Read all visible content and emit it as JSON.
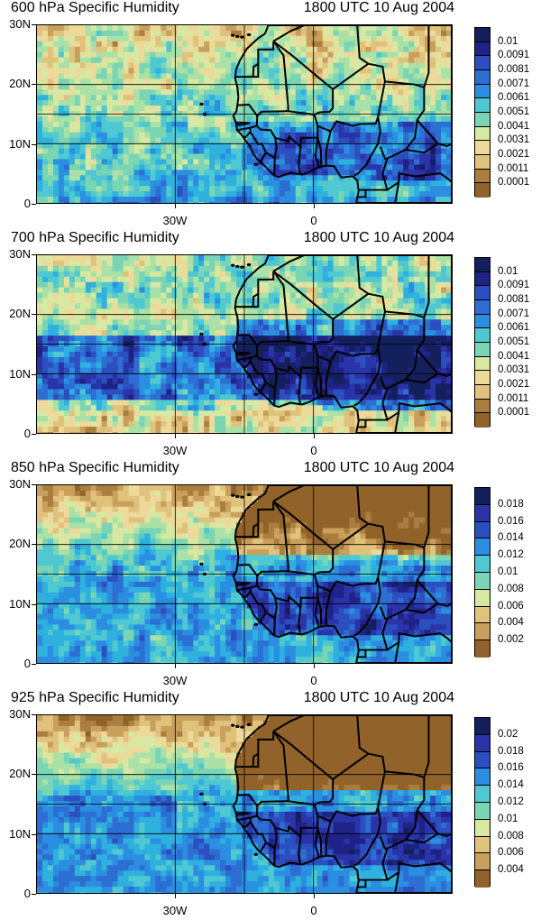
{
  "colors": {
    "humidity_scale": [
      "#91632a",
      "#a97e3f",
      "#c8a05c",
      "#e0c27c",
      "#edd99a",
      "#d8e8a2",
      "#a9e1a6",
      "#7ad5b5",
      "#4fc8d2",
      "#2fb1df",
      "#2b8ee0",
      "#2c6ed2",
      "#2c4fbf",
      "#2a34a8",
      "#1f2287",
      "#14205e"
    ],
    "land_outline": "#000000",
    "gridline": "#000000"
  },
  "panels": [
    {
      "title": "600 hPa Specific Humidity",
      "time": "1800 UTC 10 Aug 2004",
      "lat_labels": [
        "30N",
        "20N",
        "10N",
        "0"
      ],
      "lon_labels": [
        "30W",
        "0"
      ],
      "legend_labels": [
        "0.01",
        "0.0091",
        "0.0081",
        "0.0071",
        "0.0061",
        "0.0051",
        "0.0041",
        "0.0031",
        "0.0021",
        "0.0011",
        "0.0001"
      ],
      "legend_fill": 0.52
    },
    {
      "title": "700 hPa Specific Humidity",
      "time": "1800 UTC 10 Aug 2004",
      "lat_labels": [
        "30N",
        "20N",
        "10N",
        "0"
      ],
      "lon_labels": [
        "30W",
        "0"
      ],
      "legend_labels": [
        "0.01",
        "0.0091",
        "0.0081",
        "0.0071",
        "0.0061",
        "0.0051",
        "0.0041",
        "0.0031",
        "0.0021",
        "0.0011",
        "0.0001"
      ],
      "legend_fill": 0.62
    },
    {
      "title": "850 hPa Specific Humidity",
      "time": "1800 UTC 10 Aug 2004",
      "lat_labels": [
        "30N",
        "20N",
        "10N",
        "0"
      ],
      "lon_labels": [
        "30W",
        "0"
      ],
      "legend_labels": [
        "0.018",
        "0.016",
        "0.014",
        "0.012",
        "0.01",
        "0.008",
        "0.006",
        "0.004",
        "0.002"
      ],
      "legend_fill": 0.72
    },
    {
      "title": "925 hPa Specific Humidity",
      "time": "1800 UTC 10 Aug 2004",
      "lat_labels": [
        "30N",
        "20N",
        "10N",
        "0"
      ],
      "lon_labels": [
        "30W",
        "0"
      ],
      "legend_labels": [
        "0.02",
        "0.018",
        "0.016",
        "0.014",
        "0.012",
        "0.01",
        "0.008",
        "0.006",
        "0.004"
      ],
      "legend_fill": 0.78
    }
  ],
  "map_extent": {
    "lon_min": -60,
    "lon_max": 30,
    "lat_min": 0,
    "lat_max": 30,
    "grid_lons": [
      -30,
      0,
      -15
    ],
    "grid_lats": [
      10,
      20,
      15
    ]
  }
}
